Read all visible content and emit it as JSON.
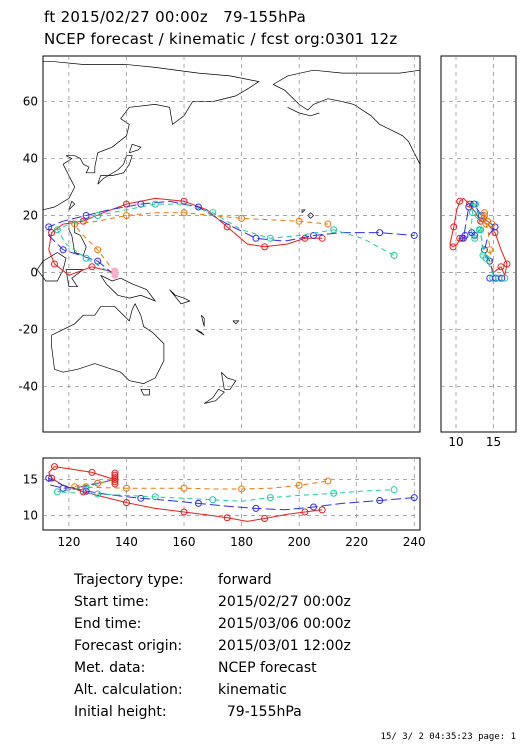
{
  "header": {
    "line1": "ft 2015/02/27 00:00z   79-155hPa",
    "line2": "NCEP forecast / kinematic / fcst org:0301 12z"
  },
  "map": {
    "lon_ticks": [
      "120",
      "140",
      "160",
      "180",
      "200",
      "220",
      "240"
    ],
    "lat_ticks": [
      "60",
      "40",
      "20",
      "0",
      "-20",
      "-40"
    ],
    "lon_range": [
      111,
      242
    ],
    "lat_range": [
      -56,
      76
    ],
    "grid": true
  },
  "side_panel": {
    "x_ticks": [
      "10",
      "15"
    ],
    "x_range": [
      8,
      18
    ]
  },
  "bottom_panel": {
    "x_ticks": [
      "120",
      "140",
      "160",
      "180",
      "200",
      "220",
      "240"
    ],
    "y_ticks": [
      "15",
      "10"
    ],
    "y_range": [
      8,
      18
    ]
  },
  "chart_data": {
    "type": "line",
    "description_axis_x": "Longitude",
    "description_axis_y": "Latitude",
    "series": [
      {
        "color": "#e02020",
        "dash": "solid",
        "points": [
          [
            136,
            0
          ],
          [
            128,
            2
          ],
          [
            120,
            -1
          ],
          [
            115,
            3
          ],
          [
            113,
            8
          ],
          [
            114,
            14
          ],
          [
            118,
            17
          ],
          [
            125,
            18
          ],
          [
            132,
            21
          ],
          [
            140,
            24
          ],
          [
            150,
            26
          ],
          [
            160,
            25
          ],
          [
            168,
            22
          ],
          [
            175,
            16
          ],
          [
            182,
            10
          ],
          [
            188,
            9
          ],
          [
            196,
            10
          ],
          [
            202,
            12
          ],
          [
            208,
            12
          ]
        ],
        "height": [
          15,
          16,
          16.5,
          16.8,
          16,
          15.2,
          14.2,
          13.3,
          12.6,
          11.8,
          11,
          10.5,
          10.1,
          9.7,
          9.2,
          9.6,
          10.2,
          10.5,
          10.8
        ]
      },
      {
        "color": "#3030e0",
        "dash": "long-dash",
        "points": [
          [
            136,
            -1
          ],
          [
            130,
            4
          ],
          [
            124,
            6
          ],
          [
            118,
            8
          ],
          [
            113,
            13
          ],
          [
            113,
            16
          ],
          [
            118,
            18
          ],
          [
            126,
            20
          ],
          [
            134,
            22
          ],
          [
            145,
            24
          ],
          [
            155,
            25
          ],
          [
            165,
            23
          ],
          [
            175,
            17
          ],
          [
            185,
            12
          ],
          [
            195,
            11
          ],
          [
            205,
            13
          ],
          [
            215,
            14
          ],
          [
            228,
            14
          ],
          [
            240,
            13
          ]
        ],
        "height": [
          15,
          14.5,
          14,
          13.8,
          14.3,
          15.2,
          14.2,
          13.4,
          12.9,
          12.4,
          12.1,
          11.7,
          11.3,
          11,
          10.8,
          11.2,
          11.7,
          12.1,
          12.5
        ]
      },
      {
        "color": "#20c8a0",
        "dash": "dash",
        "points": [
          [
            136,
            -1
          ],
          [
            126,
            5
          ],
          [
            119,
            10
          ],
          [
            116,
            15
          ],
          [
            120,
            17
          ],
          [
            130,
            20
          ],
          [
            140,
            22
          ],
          [
            150,
            24
          ],
          [
            160,
            24
          ],
          [
            170,
            21
          ],
          [
            180,
            15
          ],
          [
            190,
            12
          ],
          [
            200,
            13
          ],
          [
            212,
            15
          ],
          [
            222,
            12
          ],
          [
            233,
            6
          ]
        ],
        "height": [
          15,
          14,
          13.5,
          13.3,
          13.2,
          13,
          12.8,
          12.6,
          12.4,
          12.2,
          12,
          12.5,
          12.8,
          13.1,
          13.4,
          13.6
        ]
      },
      {
        "color": "#e07a10",
        "dash": "dash",
        "points": [
          [
            136,
            0
          ],
          [
            130,
            8
          ],
          [
            124,
            14
          ],
          [
            122,
            17
          ],
          [
            130,
            18
          ],
          [
            140,
            20
          ],
          [
            150,
            21
          ],
          [
            160,
            21
          ],
          [
            170,
            20
          ],
          [
            180,
            19
          ],
          [
            190,
            18.5
          ],
          [
            200,
            18
          ],
          [
            210,
            17
          ]
        ],
        "height": [
          15,
          14.5,
          14.3,
          14,
          13.9,
          13.8,
          13.8,
          13.8,
          13.7,
          13.7,
          13.8,
          14.2,
          14.8
        ]
      }
    ]
  },
  "info": {
    "rows": [
      {
        "label": "Trajectory type:",
        "value": "forward"
      },
      {
        "label": "Start time:",
        "value": "2015/02/27 00:00z"
      },
      {
        "label": "End time:",
        "value": "2015/03/06 00:00z"
      },
      {
        "label": "Forecast origin:",
        "value": "2015/03/01 12:00z"
      },
      {
        "label": "Met. data:",
        "value": "NCEP forecast"
      },
      {
        "label": "Alt. calculation:",
        "value": "kinematic"
      },
      {
        "label": "Initial height:",
        "value": "  79-155hPa"
      }
    ]
  },
  "footer": {
    "text": "15/ 3/ 2 04:35:23 page: 1"
  }
}
